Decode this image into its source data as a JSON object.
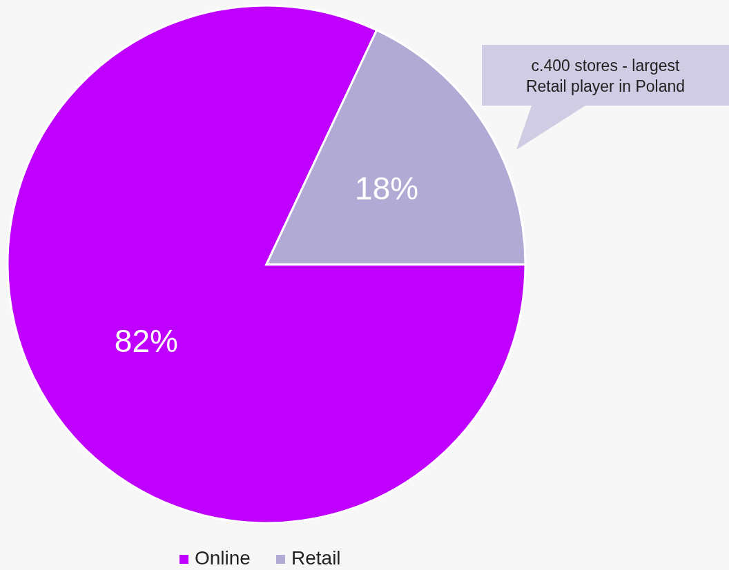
{
  "chart_data": {
    "type": "pie",
    "categories": [
      "Online",
      "Retail"
    ],
    "values": [
      82,
      18
    ],
    "colors": [
      "#bf00ff",
      "#b0aad4"
    ],
    "value_labels": [
      "82%",
      "18%"
    ],
    "annotations": [
      "c.400 stores - largest Retail player in Poland"
    ],
    "legend": "bottom"
  }
}
